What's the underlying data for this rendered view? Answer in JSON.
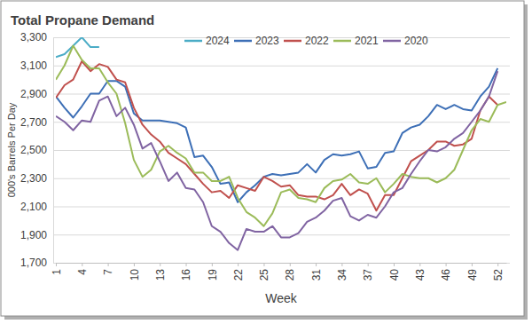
{
  "chart_data": {
    "type": "line",
    "title": "Total Propane Demand",
    "x_label": "Week",
    "y_label": "000's Barrels Per Day",
    "x": [
      1,
      2,
      3,
      4,
      5,
      6,
      7,
      8,
      9,
      10,
      11,
      12,
      13,
      14,
      15,
      16,
      17,
      18,
      19,
      20,
      21,
      22,
      23,
      24,
      25,
      26,
      27,
      28,
      29,
      30,
      31,
      32,
      33,
      34,
      35,
      36,
      37,
      38,
      39,
      40,
      41,
      42,
      43,
      44,
      45,
      46,
      47,
      48,
      49,
      50,
      51,
      52,
      53
    ],
    "xlim": [
      1,
      53
    ],
    "xticks": [
      1,
      4,
      7,
      10,
      13,
      16,
      19,
      22,
      25,
      28,
      31,
      34,
      37,
      40,
      43,
      46,
      49,
      52
    ],
    "ylim": [
      1700,
      3300
    ],
    "yticks": [
      {
        "value": 1700,
        "label": "1,700"
      },
      {
        "value": 1900,
        "label": "1,900"
      },
      {
        "value": 2100,
        "label": "2,100"
      },
      {
        "value": 2300,
        "label": "2,300"
      },
      {
        "value": 2500,
        "label": "2,500"
      },
      {
        "value": 2700,
        "label": "2,700"
      },
      {
        "value": 2900,
        "label": "2,900"
      },
      {
        "value": 3100,
        "label": "3,100"
      },
      {
        "value": 3300,
        "label": "3,300"
      }
    ],
    "grid": true,
    "legend": "top",
    "series": [
      {
        "name": "2024",
        "color": "#4bacc6",
        "values": [
          3160,
          3180,
          3240,
          3300,
          3230,
          3230,
          null,
          null,
          null,
          null,
          null,
          null,
          null,
          null,
          null,
          null,
          null,
          null,
          null,
          null,
          null,
          null,
          null,
          null,
          null,
          null,
          null,
          null,
          null,
          null,
          null,
          null,
          null,
          null,
          null,
          null,
          null,
          null,
          null,
          null,
          null,
          null,
          null,
          null,
          null,
          null,
          null,
          null,
          null,
          null,
          null,
          null,
          null
        ]
      },
      {
        "name": "2023",
        "color": "#3d6fb6",
        "values": [
          2880,
          2800,
          2730,
          2810,
          2900,
          2900,
          2990,
          2990,
          2950,
          2760,
          2710,
          2710,
          2710,
          2700,
          2690,
          2660,
          2450,
          2460,
          2380,
          2260,
          2270,
          2130,
          2200,
          2250,
          2310,
          2330,
          2320,
          2330,
          2340,
          2400,
          2340,
          2430,
          2470,
          2460,
          2470,
          2490,
          2370,
          2380,
          2480,
          2490,
          2620,
          2660,
          2680,
          2740,
          2820,
          2790,
          2820,
          2790,
          2780,
          2880,
          2950,
          3080,
          null
        ]
      },
      {
        "name": "2022",
        "color": "#c0504d",
        "values": [
          2870,
          2960,
          3000,
          3130,
          3060,
          3110,
          3090,
          3000,
          2980,
          2800,
          2680,
          2610,
          2560,
          2480,
          2440,
          2400,
          2330,
          2260,
          2200,
          2210,
          2160,
          2250,
          2230,
          2210,
          2310,
          2280,
          2240,
          2250,
          2180,
          2170,
          2170,
          2150,
          2180,
          2260,
          2180,
          2220,
          2190,
          2070,
          2180,
          2180,
          2300,
          2420,
          2460,
          2500,
          2560,
          2560,
          2530,
          2540,
          2580,
          2780,
          2880,
          2820,
          null
        ]
      },
      {
        "name": "2021",
        "color": "#9bbb59",
        "values": [
          3000,
          3100,
          3240,
          3140,
          3080,
          3080,
          2980,
          2900,
          2690,
          2430,
          2310,
          2360,
          2490,
          2530,
          2480,
          2440,
          2340,
          2340,
          2280,
          2280,
          2310,
          2160,
          2060,
          2020,
          1960,
          2050,
          2200,
          2220,
          2160,
          2150,
          2130,
          2230,
          2280,
          2290,
          2330,
          2270,
          2260,
          2300,
          2200,
          2260,
          2330,
          2310,
          2300,
          2300,
          2270,
          2300,
          2360,
          2500,
          2640,
          2720,
          2700,
          2820,
          2840
        ]
      },
      {
        "name": "2020",
        "color": "#8064a2",
        "values": [
          2740,
          2700,
          2640,
          2710,
          2700,
          2850,
          2880,
          2740,
          2800,
          2680,
          2510,
          2550,
          2420,
          2280,
          2340,
          2230,
          2220,
          2130,
          1960,
          1920,
          1840,
          1790,
          1940,
          1920,
          1920,
          1960,
          1880,
          1880,
          1910,
          1990,
          2020,
          2070,
          2140,
          2160,
          2030,
          2000,
          2040,
          2020,
          2100,
          2200,
          2230,
          2330,
          2420,
          2500,
          2490,
          2520,
          2580,
          2620,
          2700,
          2780,
          2880,
          3060,
          null
        ]
      }
    ]
  }
}
